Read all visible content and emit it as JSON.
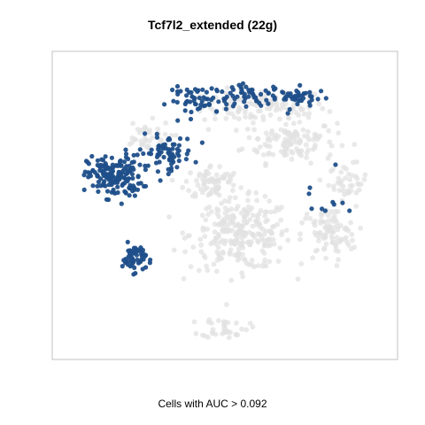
{
  "chart_data": {
    "type": "scatter",
    "title": "Tcf7l2_extended (22g)",
    "xlabel": "Cells with AUC > 0.092",
    "ylabel": "",
    "axes_visible": false,
    "grid": false,
    "legend": "none",
    "colors": {
      "positive": "#1f4f8a",
      "negative": "#e2e2e2",
      "frame": "#c0c0c0"
    },
    "series": [
      {
        "name": "",
        "color": "#e2e2e2",
        "clusters": [
          {
            "center": [
              0.62,
              0.84
            ],
            "spread": [
              0.16,
              0.05
            ],
            "count": 120
          },
          {
            "center": [
              0.7,
              0.72
            ],
            "spread": [
              0.12,
              0.06
            ],
            "count": 120
          },
          {
            "center": [
              0.88,
              0.58
            ],
            "spread": [
              0.05,
              0.05
            ],
            "count": 40
          },
          {
            "center": [
              0.55,
              0.4
            ],
            "spread": [
              0.13,
              0.1
            ],
            "count": 260
          },
          {
            "center": [
              0.82,
              0.4
            ],
            "spread": [
              0.07,
              0.08
            ],
            "count": 90
          },
          {
            "center": [
              0.46,
              0.58
            ],
            "spread": [
              0.07,
              0.05
            ],
            "count": 70
          },
          {
            "center": [
              0.5,
              0.08
            ],
            "spread": [
              0.06,
              0.03
            ],
            "count": 35
          },
          {
            "center": [
              0.25,
              0.73
            ],
            "spread": [
              0.07,
              0.05
            ],
            "count": 40
          }
        ]
      },
      {
        "name": "",
        "color": "#1f4f8a",
        "clusters": [
          {
            "center": [
              0.16,
              0.6
            ],
            "spread": [
              0.07,
              0.06
            ],
            "count": 170
          },
          {
            "center": [
              0.32,
              0.68
            ],
            "spread": [
              0.07,
              0.05
            ],
            "count": 70
          },
          {
            "center": [
              0.42,
              0.86
            ],
            "spread": [
              0.08,
              0.04
            ],
            "count": 50
          },
          {
            "center": [
              0.58,
              0.88
            ],
            "spread": [
              0.1,
              0.03
            ],
            "count": 60
          },
          {
            "center": [
              0.74,
              0.87
            ],
            "spread": [
              0.06,
              0.03
            ],
            "count": 35
          },
          {
            "center": [
              0.22,
              0.32
            ],
            "spread": [
              0.03,
              0.04
            ],
            "count": 55
          },
          {
            "center": [
              0.8,
              0.5
            ],
            "spread": [
              0.06,
              0.09
            ],
            "count": 10
          }
        ]
      }
    ]
  }
}
